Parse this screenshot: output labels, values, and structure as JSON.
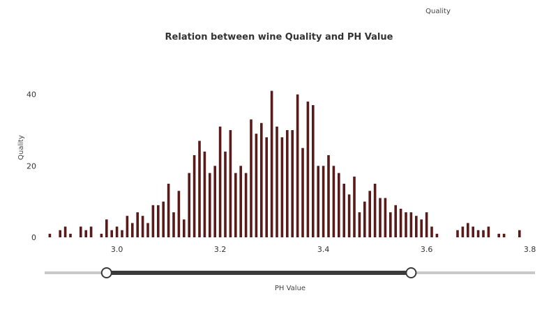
{
  "legend_title": "Quality",
  "chart_data": {
    "type": "bar",
    "title": "Relation between wine Quality and PH Value",
    "xlabel": "PH Value",
    "ylabel": "Quality",
    "xlim": [
      2.86,
      3.81
    ],
    "ylim": [
      0,
      45
    ],
    "bar_color": "#5b1a1a",
    "grid": false,
    "x_ticks": [
      {
        "value": 3.0,
        "label": "3.0"
      },
      {
        "value": 3.2,
        "label": "3.2"
      },
      {
        "value": 3.4,
        "label": "3.4"
      },
      {
        "value": 3.6,
        "label": "3.6"
      },
      {
        "value": 3.8,
        "label": "3.8"
      }
    ],
    "y_ticks": [
      {
        "value": 0,
        "label": "0"
      },
      {
        "value": 20,
        "label": "20"
      },
      {
        "value": 40,
        "label": "40"
      }
    ],
    "x": [
      2.87,
      2.89,
      2.9,
      2.91,
      2.93,
      2.94,
      2.95,
      2.97,
      2.98,
      2.99,
      3.0,
      3.01,
      3.02,
      3.03,
      3.04,
      3.05,
      3.06,
      3.07,
      3.08,
      3.09,
      3.1,
      3.11,
      3.12,
      3.13,
      3.14,
      3.15,
      3.16,
      3.17,
      3.18,
      3.19,
      3.2,
      3.21,
      3.22,
      3.23,
      3.24,
      3.25,
      3.26,
      3.27,
      3.28,
      3.29,
      3.3,
      3.31,
      3.32,
      3.33,
      3.34,
      3.35,
      3.36,
      3.37,
      3.38,
      3.39,
      3.4,
      3.41,
      3.42,
      3.43,
      3.44,
      3.45,
      3.46,
      3.47,
      3.48,
      3.49,
      3.5,
      3.51,
      3.52,
      3.53,
      3.54,
      3.55,
      3.56,
      3.57,
      3.58,
      3.59,
      3.6,
      3.61,
      3.62,
      3.63,
      3.66,
      3.67,
      3.68,
      3.69,
      3.7,
      3.71,
      3.72,
      3.74,
      3.75,
      3.78
    ],
    "values": [
      1,
      2,
      3,
      1,
      3,
      2,
      3,
      1,
      5,
      2,
      3,
      2,
      6,
      4,
      7,
      6,
      4,
      9,
      9,
      10,
      15,
      7,
      13,
      5,
      18,
      23,
      27,
      24,
      18,
      20,
      31,
      24,
      30,
      18,
      20,
      18,
      33,
      29,
      32,
      28,
      41,
      31,
      28,
      30,
      30,
      40,
      25,
      38,
      37,
      20,
      20,
      23,
      20,
      18,
      15,
      12,
      17,
      7,
      10,
      13,
      15,
      11,
      11,
      7,
      9,
      8,
      7,
      7,
      6,
      5,
      7,
      3,
      1,
      0,
      2,
      3,
      4,
      3,
      2,
      2,
      3,
      1,
      1,
      2
    ],
    "range_slider": {
      "min": 2.98,
      "max": 3.57
    }
  }
}
